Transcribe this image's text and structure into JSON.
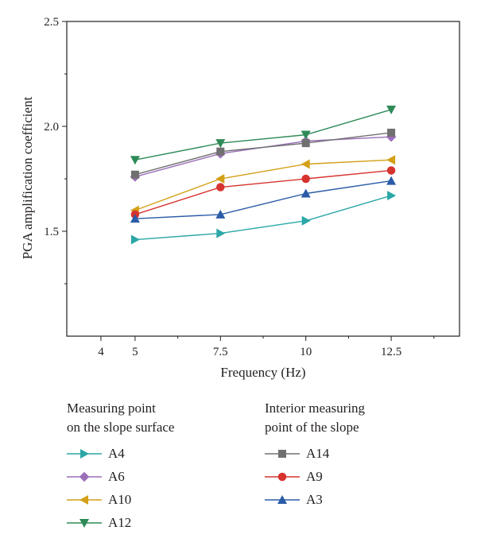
{
  "chart_data": {
    "type": "line",
    "xlabel": "Frequency (Hz)",
    "ylabel": "PGA amplification coefficient",
    "xlim": [
      3.0,
      14.5
    ],
    "ylim": [
      1.0,
      2.5
    ],
    "x_ticks": [
      4,
      5,
      7.5,
      10,
      12.5
    ],
    "x_tick_labels": [
      "4",
      "5",
      "7.5",
      "10",
      "12.5"
    ],
    "y_ticks": [
      1.5,
      2.0,
      2.5
    ],
    "y_tick_labels": [
      "1.5",
      "2.0",
      "2.5"
    ],
    "x": [
      5,
      7.5,
      10,
      12.5
    ],
    "series": [
      {
        "name": "A4",
        "marker": "triangle-right",
        "color": "#2aa7a6",
        "values": [
          1.46,
          1.49,
          1.55,
          1.67
        ],
        "group": "surface"
      },
      {
        "name": "A6",
        "marker": "diamond",
        "color": "#9c6fba",
        "values": [
          1.76,
          1.87,
          1.93,
          1.95
        ],
        "group": "surface"
      },
      {
        "name": "A10",
        "marker": "triangle-left",
        "color": "#d4a017",
        "values": [
          1.6,
          1.75,
          1.82,
          1.84
        ],
        "group": "surface"
      },
      {
        "name": "A12",
        "marker": "triangle-down",
        "color": "#2e8b57",
        "values": [
          1.84,
          1.92,
          1.96,
          2.08
        ],
        "group": "surface"
      },
      {
        "name": "A14",
        "marker": "square",
        "color": "#707070",
        "values": [
          1.77,
          1.88,
          1.92,
          1.97
        ],
        "group": "interior"
      },
      {
        "name": "A9",
        "marker": "circle",
        "color": "#d6332f",
        "values": [
          1.58,
          1.71,
          1.75,
          1.79
        ],
        "group": "interior"
      },
      {
        "name": "A3",
        "marker": "triangle-up",
        "color": "#2b5ca8",
        "values": [
          1.56,
          1.58,
          1.68,
          1.74
        ],
        "group": "interior"
      }
    ],
    "legend": {
      "left_heading": [
        "Measuring point",
        "on the slope surface"
      ],
      "right_heading": [
        "Interior measuring",
        "point of the slope"
      ]
    },
    "grid": false,
    "legend_position": "bottom"
  }
}
